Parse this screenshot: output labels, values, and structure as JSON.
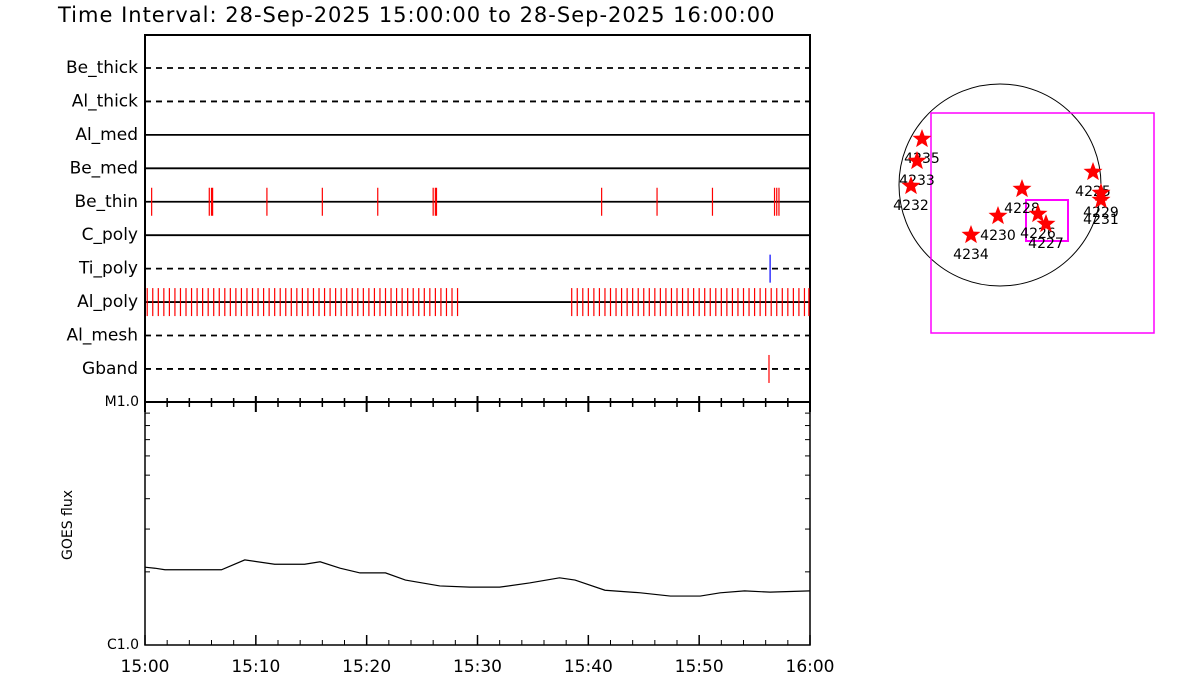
{
  "chart_data": [
    {
      "type": "timeline",
      "title": "Time Interval: 28-Sep-2025 15:00:00 to 28-Sep-2025 16:00:00",
      "xlim": [
        0,
        60
      ],
      "rows": [
        {
          "name": "Be_thick",
          "style": "dashed",
          "color": "#ff0000",
          "times": []
        },
        {
          "name": "Al_thick",
          "style": "dashed",
          "color": "#ff0000",
          "times": []
        },
        {
          "name": "Al_med",
          "style": "solid",
          "color": "#ff0000",
          "times": []
        },
        {
          "name": "Be_med",
          "style": "solid",
          "color": "#ff0000",
          "times": []
        },
        {
          "name": "Be_thin",
          "style": "solid",
          "color": "#ff0000",
          "times": [
            0.6,
            5.8,
            6.0,
            6.1,
            11.0,
            16.0,
            21.0,
            26.0,
            26.2,
            26.3,
            41.2,
            46.2,
            51.2,
            56.8,
            57.0,
            57.2
          ]
        },
        {
          "name": "C_poly",
          "style": "solid",
          "color": "#ff0000",
          "times": []
        },
        {
          "name": "Ti_poly",
          "style": "dashed",
          "color": "#0000ff",
          "times": [
            56.4
          ]
        },
        {
          "name": "Al_poly",
          "style": "solid",
          "color": "#ff0000",
          "times": [
            0.2,
            0.7,
            1.2,
            1.7,
            2.2,
            2.7,
            3.2,
            3.7,
            4.2,
            4.7,
            5.2,
            5.7,
            6.2,
            6.7,
            7.2,
            7.7,
            8.2,
            8.7,
            9.2,
            9.7,
            10.2,
            10.7,
            11.2,
            11.7,
            12.2,
            12.7,
            13.2,
            13.7,
            14.2,
            14.7,
            15.2,
            15.7,
            16.2,
            16.7,
            17.2,
            17.7,
            18.2,
            18.7,
            19.2,
            19.7,
            20.2,
            20.7,
            21.2,
            21.7,
            22.2,
            22.7,
            23.2,
            23.7,
            24.2,
            24.7,
            25.2,
            25.7,
            26.2,
            26.7,
            27.2,
            27.7,
            28.2,
            38.5,
            39.0,
            39.5,
            40.0,
            40.5,
            41.0,
            41.5,
            42.0,
            42.5,
            43.0,
            43.5,
            44.0,
            44.5,
            45.0,
            45.5,
            46.0,
            46.5,
            47.0,
            47.5,
            48.0,
            48.5,
            49.0,
            49.5,
            50.0,
            50.5,
            51.0,
            51.5,
            52.0,
            52.5,
            53.0,
            53.5,
            54.0,
            54.5,
            55.0,
            55.5,
            56.0,
            56.5,
            57.0,
            57.5,
            58.0,
            58.5,
            59.0,
            59.5,
            59.9
          ]
        },
        {
          "name": "Al_mesh",
          "style": "dashed",
          "color": "#ff0000",
          "times": []
        },
        {
          "name": "Gband",
          "style": "dashed",
          "color": "#ff0000",
          "times": [
            56.3
          ]
        }
      ]
    },
    {
      "type": "line",
      "ylabel": "GOES flux",
      "log": true,
      "xlim": [
        0,
        60
      ],
      "xticks": [
        {
          "value": 0,
          "label": "15:00"
        },
        {
          "value": 10,
          "label": "15:10"
        },
        {
          "value": 20,
          "label": "15:20"
        },
        {
          "value": 30,
          "label": "15:30"
        },
        {
          "value": 40,
          "label": "15:40"
        },
        {
          "value": 50,
          "label": "15:50"
        },
        {
          "value": 60,
          "label": "16:00"
        }
      ],
      "xminorticks": [
        2,
        4,
        6,
        8,
        12,
        14,
        16,
        18,
        22,
        24,
        26,
        28,
        32,
        34,
        36,
        38,
        42,
        44,
        46,
        48,
        52,
        54,
        56,
        58
      ],
      "ylim": [
        1e-06,
        1e-05
      ],
      "yticks": [
        {
          "value": 1e-06,
          "label": "C1.0"
        },
        {
          "value": 1e-05,
          "label": "M1.0"
        }
      ],
      "yminorticks": [
        2e-06,
        3e-06,
        4e-06,
        5e-06,
        6e-06,
        7e-06,
        8e-06,
        9e-06
      ],
      "x": [
        0,
        0.9,
        1.8,
        6.9,
        9.0,
        11.7,
        14.4,
        15.8,
        17.6,
        19.4,
        21.7,
        23.5,
        26.6,
        29.3,
        32.0,
        34.7,
        37.4,
        38.8,
        41.5,
        44.7,
        47.4,
        50.1,
        51.9,
        54.1,
        56.4,
        60
      ],
      "series": [
        {
          "color": "#000000",
          "values": [
            2.09e-06,
            2.07e-06,
            2.04e-06,
            2.04e-06,
            2.24e-06,
            2.15e-06,
            2.15e-06,
            2.2e-06,
            2.07e-06,
            1.98e-06,
            1.98e-06,
            1.85e-06,
            1.75e-06,
            1.73e-06,
            1.73e-06,
            1.8e-06,
            1.89e-06,
            1.85e-06,
            1.68e-06,
            1.64e-06,
            1.59e-06,
            1.59e-06,
            1.64e-06,
            1.67e-06,
            1.65e-06,
            1.67e-06
          ]
        }
      ]
    }
  ],
  "regions": [
    "4235",
    "4233",
    "4232",
    "4228",
    "4230",
    "4234",
    "4226",
    "4227",
    "4225",
    "4229",
    "4231"
  ]
}
